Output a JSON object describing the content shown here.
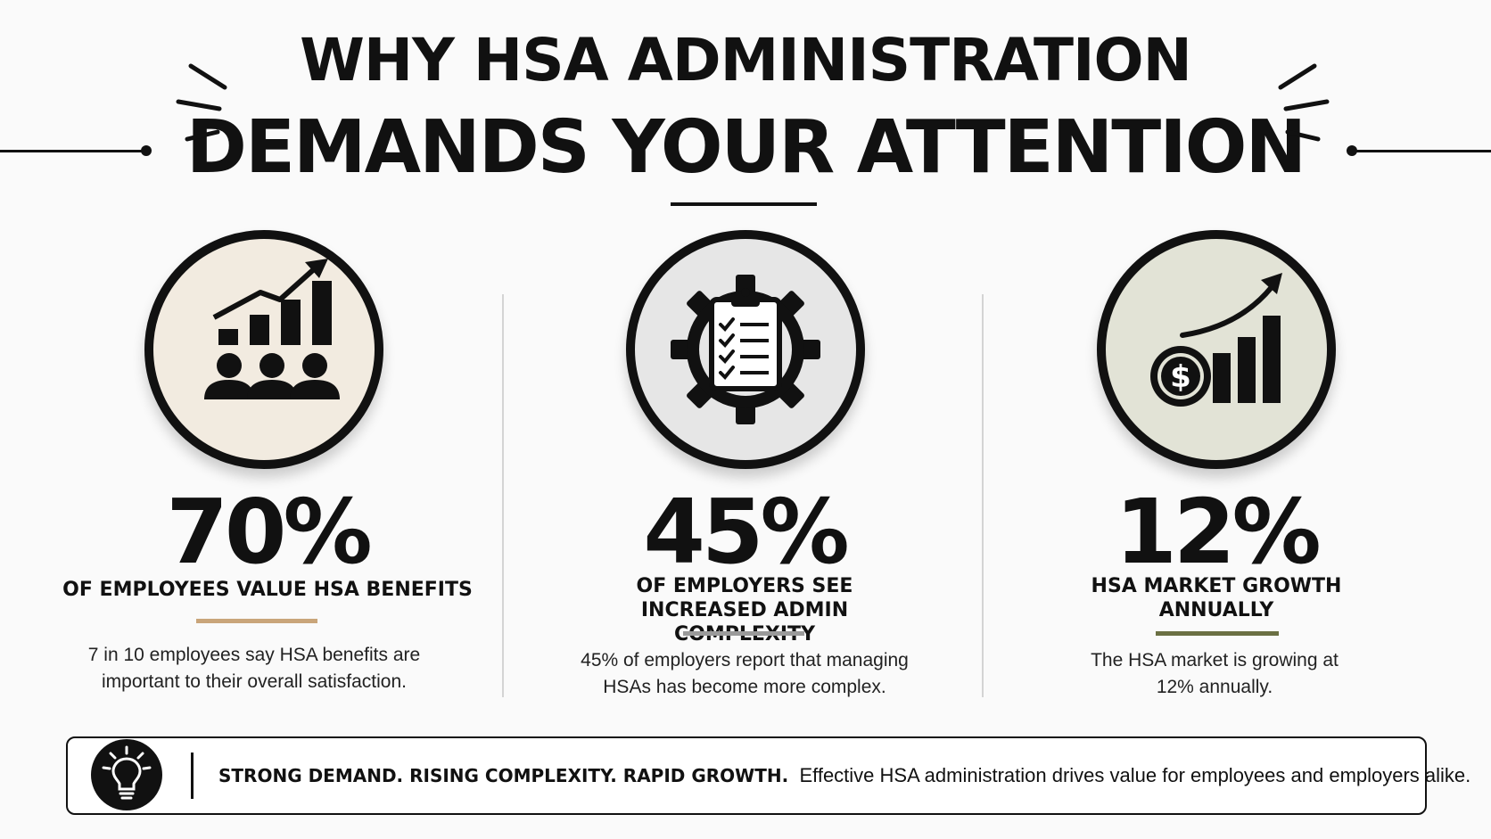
{
  "header": {
    "title_line1": "WHY HSA ADMINISTRATION",
    "title_line2": "DEMANDS YOUR ATTENTION"
  },
  "columns": [
    {
      "icon": "people-growth-chart-icon",
      "circle_fill": "#f2ebe0",
      "stat": "70%",
      "label": "OF EMPLOYEES VALUE HSA BENEFITS",
      "accent_color": "#c9a57a",
      "description": "7 in 10 employees say HSA benefits are important to their overall satisfaction."
    },
    {
      "icon": "gear-clipboard-checklist-icon",
      "circle_fill": "#e6e6e6",
      "stat": "45%",
      "label": "OF EMPLOYERS SEE INCREASED ADMIN COMPLEXITY",
      "accent_color": "#9a9a9a",
      "description": "45% of employers report that managing HSAs has become more complex."
    },
    {
      "icon": "dollar-growth-chart-icon",
      "circle_fill": "#e2e3d6",
      "stat": "12%",
      "label": "HSA MARKET GROWTH ANNUALLY",
      "accent_color": "#6b7043",
      "description": "The HSA market is growing at 12% annually."
    }
  ],
  "banner": {
    "icon": "lightbulb-icon",
    "headline": "STRONG DEMAND. RISING COMPLEXITY. RAPID GROWTH.",
    "text": "Effective HSA administration drives value for employees and employers alike."
  }
}
